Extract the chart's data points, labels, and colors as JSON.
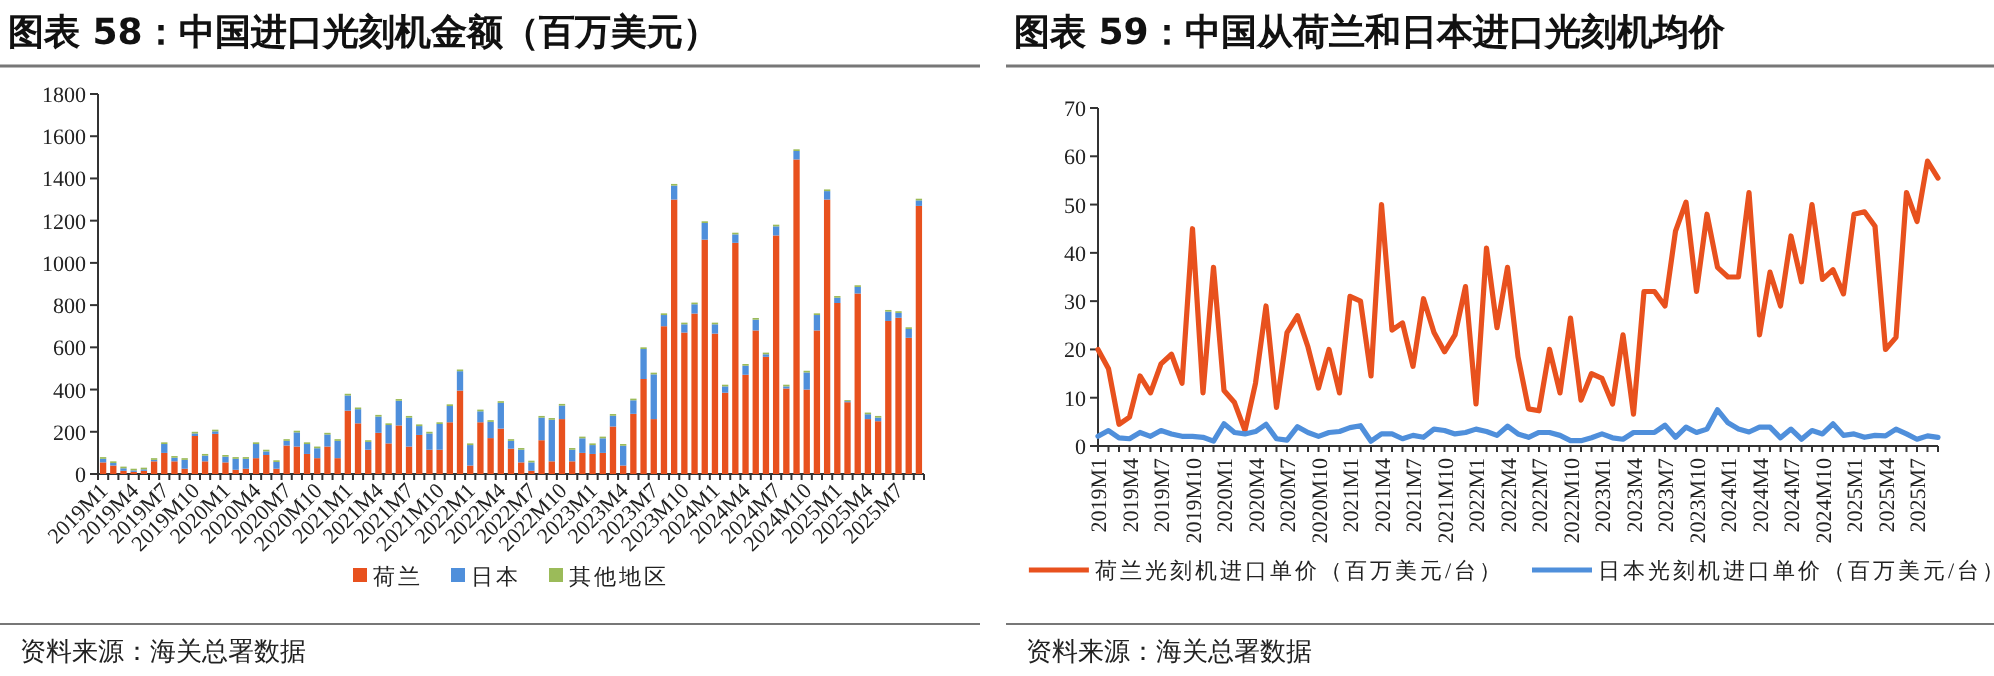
{
  "chart_data": [
    {
      "type": "bar",
      "title": "图表 58：中国进口光刻机金额（百万美元）",
      "stacked": true,
      "legend": "bottom",
      "categories": [
        "2019M1",
        null,
        null,
        "2019M4",
        null,
        null,
        "2019M7",
        null,
        null,
        "2019M10",
        null,
        null,
        "2020M1",
        null,
        null,
        "2020M4",
        null,
        null,
        "2020M7",
        null,
        null,
        "2020M10",
        null,
        null,
        "2021M1",
        null,
        null,
        "2021M4",
        null,
        null,
        "2021M7",
        null,
        null,
        "2021M10",
        null,
        null,
        "2022M1",
        null,
        null,
        "2022M4",
        null,
        null,
        "2022M7",
        null,
        null,
        "2022M10",
        null,
        null,
        "2023M1",
        null,
        null,
        "2023M4",
        null,
        null,
        "2023M7",
        null,
        null,
        "2023M10",
        null,
        null,
        "2024M1",
        null,
        null,
        "2024M4",
        null,
        null,
        "2024M7",
        null,
        null,
        "2024M10",
        null,
        null,
        "2025M1",
        null,
        null,
        "2025M4",
        null,
        null,
        "2025M7",
        null,
        null
      ],
      "series": [
        {
          "name": "荷兰",
          "color": "#e8511e",
          "values": [
            55,
            40,
            15,
            10,
            15,
            60,
            100,
            60,
            25,
            180,
            60,
            190,
            55,
            20,
            25,
            75,
            90,
            25,
            135,
            130,
            95,
            75,
            130,
            75,
            300,
            240,
            115,
            195,
            145,
            230,
            130,
            185,
            115,
            115,
            245,
            395,
            40,
            245,
            170,
            215,
            120,
            55,
            15,
            160,
            60,
            260,
            60,
            100,
            95,
            100,
            225,
            40,
            285,
            450,
            260,
            700,
            1300,
            670,
            760,
            1110,
            665,
            385,
            1095,
            470,
            680,
            555,
            1130,
            405,
            1490,
            400,
            680,
            1300,
            810,
            340,
            855,
            260,
            250,
            725,
            740,
            645,
            1270
          ]
        },
        {
          "name": "日本",
          "color": "#4f8fdb",
          "values": [
            17,
            12,
            12,
            7,
            7,
            7,
            42,
            17,
            42,
            12,
            27,
            12,
            27,
            52,
            47,
            67,
            17,
            32,
            22,
            67,
            47,
            47,
            57,
            82,
            72,
            67,
            37,
            77,
            87,
            117,
            137,
            42,
            77,
            122,
            77,
            92,
            97,
            52,
            77,
            122,
            37,
            60,
            40,
            107,
            197,
            64,
            55,
            69,
            42,
            69,
            51,
            94,
            64,
            142,
            212,
            53,
            66,
            39,
            44,
            79,
            44,
            30,
            40,
            43,
            51,
            12,
            43,
            10,
            40,
            81,
            73,
            40,
            25,
            5,
            31,
            23,
            17,
            44,
            23,
            42,
            26
          ]
        },
        {
          "name": "其他地区",
          "color": "#9bbb59",
          "values": [
            8,
            8,
            8,
            8,
            8,
            8,
            8,
            8,
            8,
            8,
            8,
            8,
            8,
            8,
            8,
            8,
            8,
            8,
            8,
            8,
            8,
            8,
            8,
            8,
            8,
            8,
            8,
            8,
            8,
            8,
            8,
            8,
            8,
            8,
            8,
            8,
            8,
            8,
            8,
            8,
            8,
            8,
            8,
            8,
            8,
            8,
            8,
            8,
            8,
            8,
            8,
            8,
            8,
            8,
            8,
            8,
            8,
            8,
            8,
            8,
            8,
            8,
            8,
            8,
            8,
            8,
            8,
            8,
            8,
            8,
            8,
            8,
            8,
            5,
            8,
            8,
            8,
            8,
            8,
            8,
            8
          ]
        }
      ],
      "ylim": [
        0,
        1800
      ],
      "yticks": [
        0,
        200,
        400,
        600,
        800,
        1000,
        1200,
        1400,
        1600,
        1800
      ],
      "annotations": [
        "资料来源：海关总署数据"
      ]
    },
    {
      "type": "line",
      "title": "图表 59：中国从荷兰和日本进口光刻机均价",
      "legend": "bottom",
      "categories": [
        "2019M1",
        null,
        null,
        "2019M4",
        null,
        null,
        "2019M7",
        null,
        null,
        "2019M10",
        null,
        null,
        "2020M1",
        null,
        null,
        "2020M4",
        null,
        null,
        "2020M7",
        null,
        null,
        "2020M10",
        null,
        null,
        "2021M1",
        null,
        null,
        "2021M4",
        null,
        null,
        "2021M7",
        null,
        null,
        "2021M10",
        null,
        null,
        "2022M1",
        null,
        null,
        "2022M4",
        null,
        null,
        "2022M7",
        null,
        null,
        "2022M10",
        null,
        null,
        "2023M1",
        null,
        null,
        "2023M4",
        null,
        null,
        "2023M7",
        null,
        null,
        "2023M10",
        null,
        null,
        "2024M1",
        null,
        null,
        "2024M4",
        null,
        null,
        "2024M7",
        null,
        null,
        "2024M10",
        null,
        null,
        "2025M1",
        null,
        null,
        "2025M4",
        null,
        null,
        "2025M7",
        null,
        null
      ],
      "series": [
        {
          "name": "荷兰光刻机进口单价（百万美元/台）",
          "color": "#e8511e",
          "values": [
            20,
            16,
            4.5,
            6,
            14.5,
            11,
            17,
            19,
            13,
            45,
            11,
            37,
            11.5,
            9,
            3.2,
            13,
            29,
            8,
            23.5,
            27,
            20.5,
            12,
            20,
            11,
            31,
            30,
            14.5,
            50,
            24,
            25.5,
            16.5,
            30.5,
            23.5,
            19.5,
            23,
            33,
            8.7,
            41,
            24.5,
            37,
            18.5,
            7.7,
            7.3,
            20,
            11,
            26.5,
            9.5,
            15,
            14,
            8.7,
            23,
            6.6,
            32,
            32,
            29,
            44.5,
            50.5,
            32,
            48,
            37,
            35,
            35,
            52.5,
            23,
            36,
            29,
            43.5,
            34,
            50,
            34.5,
            36.5,
            31.5,
            48,
            48.5,
            45.5,
            20,
            22.5,
            52.5,
            46.5,
            59,
            55.5
          ]
        },
        {
          "name": "日本光刻机进口单价（百万美元/台）",
          "color": "#4f8fdb",
          "values": [
            2,
            3.2,
            1.7,
            1.5,
            2.8,
            2,
            3.2,
            2.5,
            2,
            2,
            1.8,
            1,
            4.6,
            2.8,
            2.5,
            3,
            4.5,
            1.5,
            1.2,
            4,
            2.8,
            2,
            2.8,
            3,
            3.8,
            4.2,
            1,
            2.5,
            2.5,
            1.5,
            2.2,
            1.8,
            3.5,
            3.2,
            2.5,
            2.8,
            3.5,
            3,
            2.2,
            4.1,
            2.5,
            1.8,
            2.8,
            2.8,
            2.2,
            1.1,
            1.1,
            1.7,
            2.5,
            1.7,
            1.4,
            2.8,
            2.8,
            2.8,
            4.3,
            1.8,
            3.9,
            2.8,
            3.5,
            7.5,
            4.8,
            3.5,
            2.9,
            3.9,
            3.9,
            1.7,
            3.5,
            1.4,
            3.2,
            2.5,
            4.6,
            2.2,
            2.5,
            1.8,
            2.2,
            2.1,
            3.5,
            2.5,
            1.4,
            2.1,
            1.8
          ]
        }
      ],
      "ylim": [
        0,
        70
      ],
      "yticks": [
        0,
        10,
        20,
        30,
        40,
        50,
        60,
        70
      ],
      "annotations": [
        "资料来源：海关总署数据"
      ]
    }
  ]
}
